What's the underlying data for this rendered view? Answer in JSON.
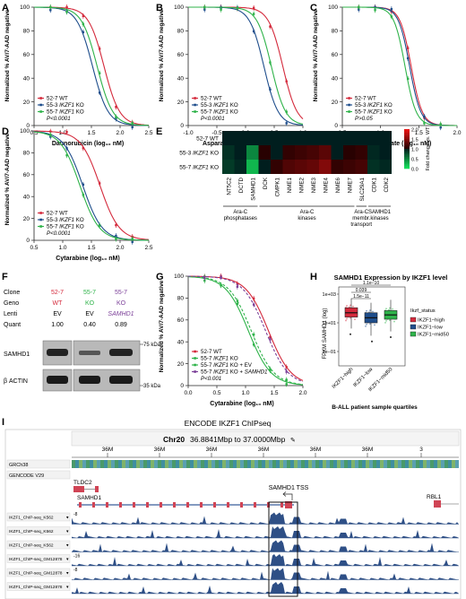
{
  "panels": {
    "A": {
      "letter": "A",
      "xlabel": "Daunorubicin (log₁₀ nM)",
      "ylabel": "Normalized % AV/7-AAD negative",
      "xticks": [
        "0.5",
        "1.0",
        "1.5",
        "2.0",
        "2.5"
      ],
      "yticks": [
        "0",
        "20",
        "40",
        "60",
        "80",
        "100"
      ],
      "legend": [
        "52-7 WT",
        "55-3 IKZF1 KO",
        "55-7 IKZF1 KO"
      ],
      "pval": "P<0.0001"
    },
    "B": {
      "letter": "B",
      "xlabel": "Asparaginase (log₁₀ IU/ml)",
      "ylabel": "Normalized % AV/7-AAD negative",
      "xticks": [
        "-1.0",
        "-0.5",
        "0.0",
        "0.5",
        "1.0"
      ],
      "yticks": [
        "0",
        "20",
        "40",
        "60",
        "80",
        "100"
      ],
      "legend": [
        "52-7 WT",
        "55-3 IKZF1 KO",
        "55-7 IKZF1 KO"
      ],
      "pval": "P<0.0001"
    },
    "C": {
      "letter": "C",
      "xlabel": "Methotrexate (log₁₀ nM)",
      "ylabel": "Normalized % AV/7-AAD negative",
      "xticks": [
        "0.5",
        "1.0",
        "1.5",
        "2.0"
      ],
      "yticks": [
        "0",
        "20",
        "40",
        "60",
        "80",
        "100"
      ],
      "legend": [
        "52-7 WT",
        "55-3 IKZF1 KO",
        "55-7 IKZF1 KO"
      ],
      "pval": "P>0.05"
    },
    "D": {
      "letter": "D",
      "xlabel": "Cytarabine (log₁₀ nM)",
      "ylabel": "Normalized % AV/7-AAD negative",
      "xticks": [
        "0.5",
        "1.0",
        "1.5",
        "2.0",
        "2.5"
      ],
      "yticks": [
        "0",
        "20",
        "40",
        "60",
        "80",
        "100"
      ],
      "legend": [
        "52-7 WT",
        "55-3 IKZF1 KO",
        "55-7 IKZF1 KO"
      ],
      "pval": "P<0.0001"
    },
    "G": {
      "letter": "G",
      "xlabel": "Cytarabine (log₁₀ nM)",
      "ylabel": "Normalized % AV/7-AAD negative",
      "xticks": [
        "0.0",
        "0.5",
        "1.0",
        "1.5",
        "2.0"
      ],
      "yticks": [
        "0",
        "20",
        "40",
        "60",
        "80",
        "100"
      ],
      "legend": [
        "52-7 WT",
        "55-7 IKZF1 KO",
        "55-7 IKZF1 KO + EV",
        "55-7 IKZF1 KO + SAMHD1"
      ],
      "pval": "P<0.001"
    }
  },
  "colors": {
    "wt": "#d42a3c",
    "ko3": "#1f4e8c",
    "ko7": "#2fb34a",
    "ko7ev": "#2fb34a",
    "ko7s": "#7b3f98"
  },
  "heatmap": {
    "letter": "E",
    "rows": [
      "52-7 WT",
      "55-3 IKZF1 KO",
      "55-7 IKZF1 KO"
    ],
    "cols": [
      "NT5C2",
      "DCTD",
      "SAMHD1",
      "DCK",
      "CMPK1",
      "NME1",
      "NME2",
      "NME3",
      "NME4",
      "NME6",
      "NME7",
      "SLC29A1",
      "CDK1",
      "CDK2"
    ],
    "values": [
      [
        1.0,
        1.0,
        1.0,
        1.0,
        1.0,
        1.0,
        1.0,
        1.0,
        1.0,
        1.0,
        1.0,
        1.0,
        1.0,
        1.0
      ],
      [
        0.9,
        1.0,
        0.45,
        1.05,
        1.0,
        1.1,
        1.15,
        1.2,
        1.3,
        1.0,
        1.05,
        1.1,
        0.95,
        1.0
      ],
      [
        0.85,
        0.95,
        0.2,
        1.0,
        1.1,
        1.25,
        1.3,
        1.35,
        1.5,
        1.1,
        1.15,
        1.2,
        0.9,
        0.95
      ]
    ],
    "groups": [
      "Ara-C phosphatases",
      "Ara-C kinases",
      "Ara-C membr. transport",
      "SAMHD1 kinases"
    ],
    "scale_ticks": [
      "2.0",
      "1.5",
      "1.0",
      "0.5",
      "0.0"
    ],
    "scale_label": "Fold change vs. WT"
  },
  "western": {
    "letter": "F",
    "row_labels": [
      "Clone",
      "Geno",
      "Lenti",
      "Quant"
    ],
    "clones": [
      "52-7",
      "55-7",
      "55-7"
    ],
    "genos": [
      "WT",
      "KO",
      "KO"
    ],
    "lentis": [
      "EV",
      "EV",
      "SAMHD1"
    ],
    "quants": [
      "1.00",
      "0.40",
      "0.89"
    ],
    "band1": "SAMHD1",
    "band2": "β ACTIN",
    "kda1": "75 kDa",
    "kda2": "35 kDa"
  },
  "boxplot": {
    "letter": "H",
    "title": "SAMHD1 Expression by IKZF1 level",
    "ylabel": "FPKM SAMHD1 (log)",
    "xlabel": "B-ALL patient sample quartiles",
    "categories": [
      "IKZF1−high",
      "IKZF1−low",
      "IKZF1−mid50"
    ],
    "yticks": [
      "1e+03",
      "1e+01",
      "1e−01"
    ],
    "stats": [
      {
        "q1": 1.4,
        "med": 1.7,
        "q3": 2.05,
        "wl": 0.6,
        "wh": 2.7
      },
      {
        "q1": 1.0,
        "med": 1.35,
        "q3": 1.7,
        "wl": 0.1,
        "wh": 2.4
      },
      {
        "q1": 1.25,
        "med": 1.55,
        "q3": 1.85,
        "wl": 0.4,
        "wh": 2.6
      }
    ],
    "pvals": [
      "1.1e−10",
      "0.039",
      "1.5e−11"
    ],
    "legend_title": "Ikzf_status",
    "legend": [
      "IKZF1−high",
      "IKZF1−low",
      "IKZF1−mid50"
    ],
    "colors": [
      "#d42a3c",
      "#1f4e8c",
      "#2fb34a"
    ]
  },
  "chip": {
    "letter": "I",
    "title": "ENCODE IKZF1 ChIPseq",
    "locus_chr": "Chr20",
    "locus_range": "36.8841Mbp to 37.0000Mbp",
    "ruler": [
      "36M",
      "36M",
      "36M",
      "36M",
      "36M",
      "36M",
      "3"
    ],
    "grch": "GRCh38",
    "gencode": "GENCODE V29",
    "genes": [
      "TLDC2",
      "SAMHD1",
      "SAMHD1 TSS",
      "RBL1"
    ],
    "tracks": [
      {
        "label": "IKZF1_ChIP-seq_K562",
        "scale": "-8"
      },
      {
        "label": "IKZF1_ChIP-seq_K562",
        "scale": ""
      },
      {
        "label": "IKZF1_ChIP-seq_K562",
        "scale": ""
      },
      {
        "label": "IKZF1_ChIP-seq_GM12878",
        "scale": "-16"
      },
      {
        "label": "IKZF1_ChIP-seq_GM12878",
        "scale": "-8"
      },
      {
        "label": "IKZF1_ChIP-seq_GM12878",
        "scale": ""
      }
    ]
  },
  "chart_data": [
    {
      "type": "line",
      "panel": "A",
      "x_range": [
        0.5,
        2.5
      ],
      "ylim": [
        0,
        100
      ],
      "series": [
        {
          "name": "52-7 WT",
          "ic50": 1.72,
          "hill": 3.2
        },
        {
          "name": "55-3 IKZF1 KO",
          "ic50": 1.52,
          "hill": 3.2
        },
        {
          "name": "55-7 IKZF1 KO",
          "ic50": 1.6,
          "hill": 3.2
        }
      ]
    },
    {
      "type": "line",
      "panel": "B",
      "x_range": [
        -1.0,
        1.0
      ],
      "ylim": [
        0,
        100
      ],
      "series": [
        {
          "name": "52-7 WT",
          "ic50": 0.65,
          "hill": 3.5
        },
        {
          "name": "55-3 IKZF1 KO",
          "ic50": 0.32,
          "hill": 3.5
        },
        {
          "name": "55-7 IKZF1 KO",
          "ic50": 0.45,
          "hill": 3.5
        }
      ]
    },
    {
      "type": "line",
      "panel": "C",
      "x_range": [
        0.5,
        2.0
      ],
      "ylim": [
        0,
        100
      ],
      "series": [
        {
          "name": "52-7 WT",
          "ic50": 1.4,
          "hill": 6
        },
        {
          "name": "55-3 IKZF1 KO",
          "ic50": 1.38,
          "hill": 6
        },
        {
          "name": "55-7 IKZF1 KO",
          "ic50": 1.32,
          "hill": 6
        }
      ]
    },
    {
      "type": "line",
      "panel": "D",
      "x_range": [
        0.5,
        2.5
      ],
      "ylim": [
        0,
        100
      ],
      "series": [
        {
          "name": "52-7 WT",
          "ic50": 1.65,
          "hill": 2.6
        },
        {
          "name": "55-3 IKZF1 KO",
          "ic50": 1.35,
          "hill": 2.6
        },
        {
          "name": "55-7 IKZF1 KO",
          "ic50": 1.3,
          "hill": 2.6
        }
      ]
    },
    {
      "type": "line",
      "panel": "G",
      "x_range": [
        0.0,
        2.0
      ],
      "ylim": [
        0,
        100
      ],
      "series": [
        {
          "name": "52-7 WT",
          "ic50": 1.4,
          "hill": 2.2
        },
        {
          "name": "55-7 IKZF1 KO",
          "ic50": 1.05,
          "hill": 2.2
        },
        {
          "name": "55-7 IKZF1 KO + EV",
          "ic50": 1.1,
          "hill": 2.2
        },
        {
          "name": "55-7 IKZF1 KO + SAMHD1",
          "ic50": 1.35,
          "hill": 2.2
        }
      ]
    }
  ]
}
